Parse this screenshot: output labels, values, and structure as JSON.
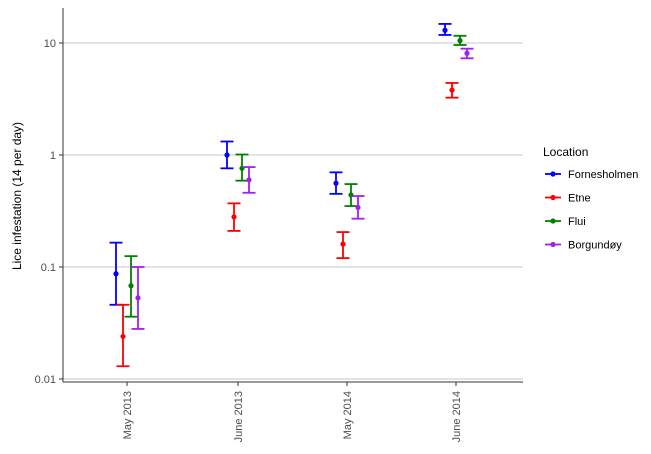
{
  "chart_data": {
    "type": "scatter",
    "subtype": "point-with-error-bars",
    "title": "",
    "xlabel": "",
    "ylabel": "Lice infestation (14 per day)",
    "y_scale": "log10",
    "ylim": [
      0.008,
      20
    ],
    "y_ticks": [
      {
        "value": 0.01,
        "label": "0.01"
      },
      {
        "value": 0.1,
        "label": "0.1"
      },
      {
        "value": 1,
        "label": "1"
      },
      {
        "value": 10,
        "label": "10"
      }
    ],
    "grid": "horizontal major",
    "categories": [
      "May 2013",
      "June 2013",
      "May 2014",
      "June 2014"
    ],
    "legend": {
      "title": "Location",
      "placement": "right"
    },
    "series": [
      {
        "name": "Fornesholmen",
        "color": "#0000ff",
        "values": [
          0.087,
          1.0,
          0.56,
          13.0
        ],
        "lower": [
          0.046,
          0.76,
          0.45,
          11.8
        ],
        "upper": [
          0.165,
          1.32,
          0.7,
          14.8
        ]
      },
      {
        "name": "Etne",
        "color": "#ff0000",
        "values": [
          0.024,
          0.28,
          0.16,
          3.8
        ],
        "lower": [
          0.013,
          0.21,
          0.12,
          3.25
        ],
        "upper": [
          0.046,
          0.37,
          0.205,
          4.4
        ]
      },
      {
        "name": "Flui",
        "color": "#008000",
        "values": [
          0.068,
          0.76,
          0.44,
          10.5
        ],
        "lower": [
          0.036,
          0.59,
          0.35,
          9.6
        ],
        "upper": [
          0.125,
          1.01,
          0.55,
          11.6
        ]
      },
      {
        "name": "Borgundøy",
        "color": "#a020f0",
        "values": [
          0.053,
          0.6,
          0.34,
          8.1
        ],
        "lower": [
          0.028,
          0.46,
          0.27,
          7.3
        ],
        "upper": [
          0.1,
          0.78,
          0.43,
          8.9
        ]
      }
    ]
  }
}
